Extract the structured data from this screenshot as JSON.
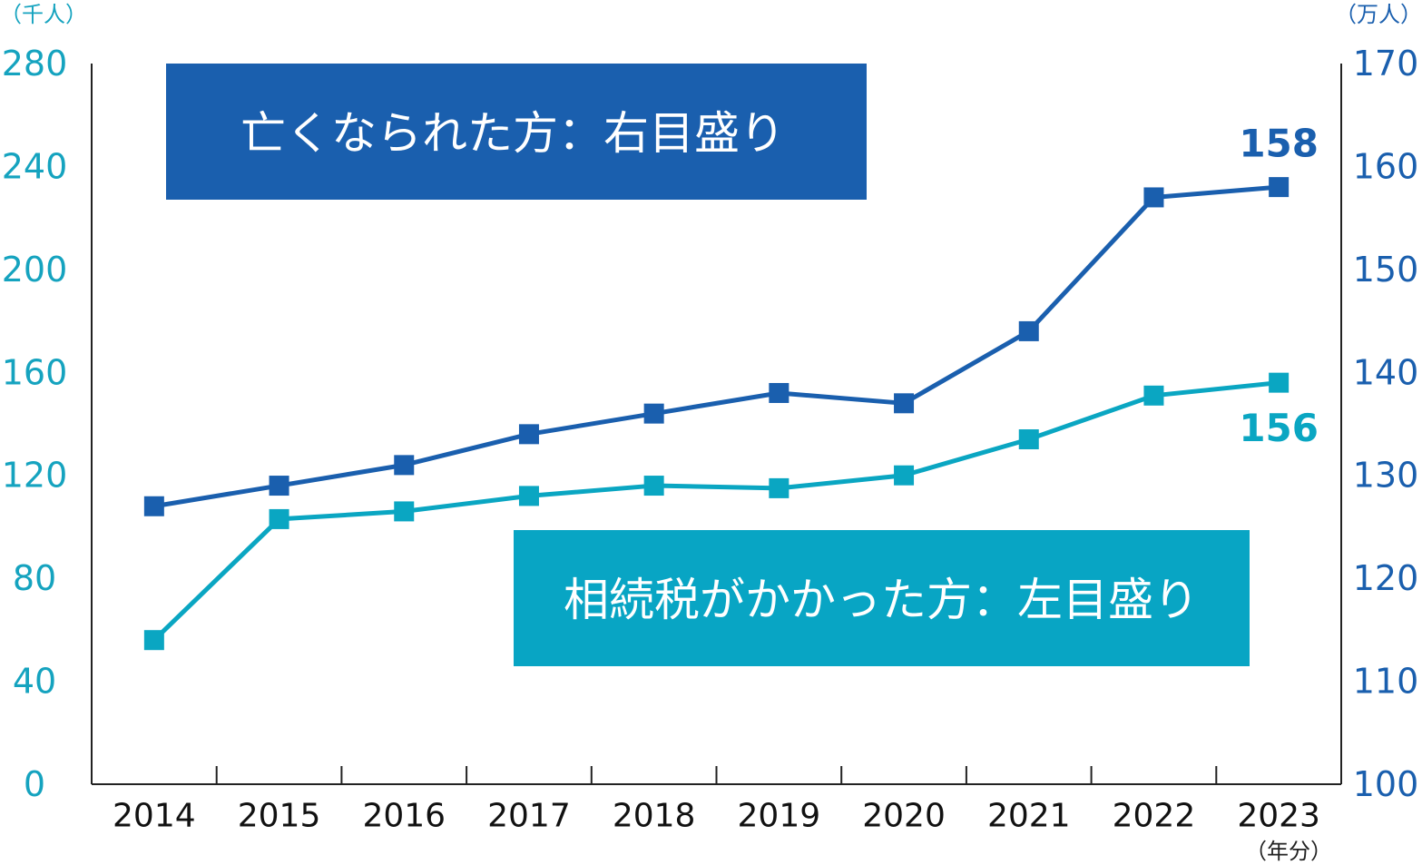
{
  "chart_data": {
    "type": "line",
    "categories": [
      "2014",
      "2015",
      "2016",
      "2017",
      "2018",
      "2019",
      "2020",
      "2021",
      "2022",
      "2023"
    ],
    "x_unit_label": "（年分）",
    "left_axis": {
      "unit_label": "（千人）",
      "ylim": [
        0,
        280
      ],
      "ticks": [
        "0",
        "40",
        "80",
        "120",
        "160",
        "200",
        "240",
        "280"
      ]
    },
    "right_axis": {
      "unit_label": "（万人）",
      "ylim": [
        100,
        170
      ],
      "ticks": [
        "100",
        "110",
        "120",
        "130",
        "140",
        "150",
        "160",
        "170"
      ]
    },
    "series": [
      {
        "name": "亡くなられた方：右目盛り",
        "axis": "right",
        "color": "#1a5fae",
        "values": [
          127,
          129,
          131,
          134,
          136,
          138,
          137,
          144,
          157,
          158
        ],
        "end_label": "158"
      },
      {
        "name": "相続税がかかった方：左目盛り",
        "axis": "left",
        "color": "#0aa6c2",
        "values": [
          56,
          103,
          106,
          112,
          116,
          115,
          120,
          134,
          151,
          156
        ],
        "end_label": "156"
      }
    ],
    "legend": [
      {
        "text": "亡くなられた方：右目盛り",
        "color": "#1a5fae",
        "placement": "top-left"
      },
      {
        "text": "相続税がかかった方：左目盛り",
        "color": "#08a5c4",
        "placement": "bottom-right"
      }
    ],
    "colors": {
      "axis": "#222222",
      "left_tick": "#15a3bf",
      "right_tick": "#1a5fae",
      "label_text": "#ffffff"
    }
  }
}
